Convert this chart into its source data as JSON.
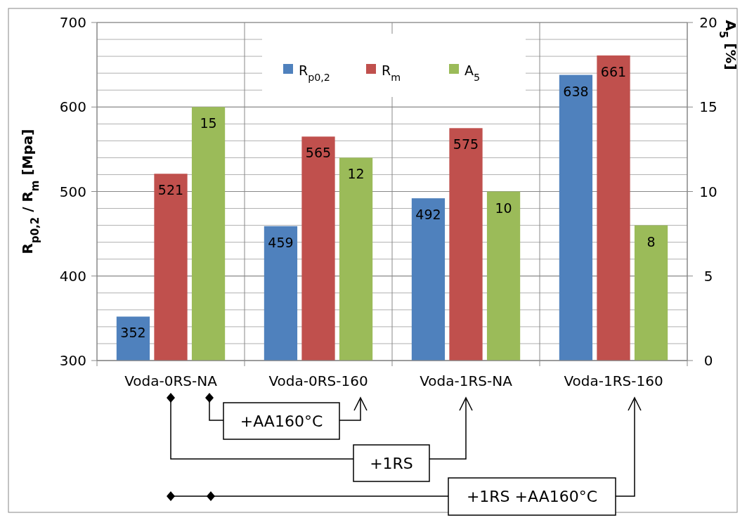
{
  "chart_data": {
    "type": "bar",
    "ylabel": "R$_{p0,2}$ / R$_{m}$ [Mpa]",
    "y2label": "A$_{5}$ [%]",
    "categories": [
      "Voda-0RS-NA",
      "Voda-0RS-160",
      "Voda-1RS-NA",
      "Voda-1RS-160"
    ],
    "series": [
      {
        "name": "R$_{p0,2}$",
        "color": "#4f81bd",
        "values": [
          352,
          459,
          492,
          638
        ]
      },
      {
        "name": "R$_{m}$",
        "color": "#c0504d",
        "values": [
          521,
          565,
          575,
          661
        ]
      },
      {
        "name": "A$_{5}$",
        "color": "#9bbb59",
        "values": [
          15,
          12,
          10,
          8
        ],
        "axis": "y2"
      }
    ],
    "ylim": [
      300,
      700
    ],
    "yticks": [
      300,
      400,
      500,
      600,
      700
    ],
    "y2lim": [
      0,
      20
    ],
    "y2ticks": [
      0,
      {
        "value": 1,
        "label": null
      },
      {
        "value": 2,
        "label": null
      },
      {
        "value": 3,
        "label": null
      },
      {
        "value": 4,
        "label": null
      },
      5,
      {
        "value": 6,
        "label": null
      },
      {
        "value": 7,
        "label": null
      },
      {
        "value": 8,
        "label": null
      },
      {
        "value": 9,
        "label": null
      },
      10,
      {
        "value": 11,
        "label": null
      },
      {
        "value": 12,
        "label": null
      },
      {
        "value": 13,
        "label": null
      },
      {
        "value": 14,
        "label": null
      },
      15,
      {
        "value": 16,
        "label": null
      },
      {
        "value": 17,
        "label": null
      },
      {
        "value": 18,
        "label": null
      },
      {
        "value": 19,
        "label": null
      },
      20
    ],
    "grid": true,
    "legend": "top",
    "data_labels": true,
    "annotations": [
      "+AA160°C",
      "+1RS",
      "+1RS +AA160°C"
    ]
  }
}
